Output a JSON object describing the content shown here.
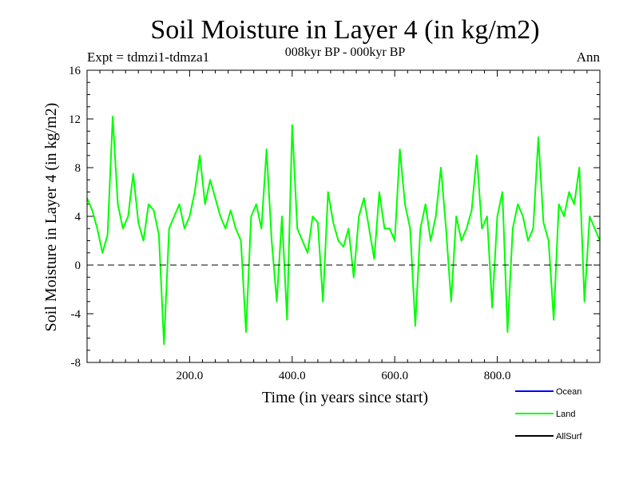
{
  "chart_data": {
    "type": "line",
    "title": "Soil Moisture in Layer 4 (in kg/m2)",
    "subtitle": "008kyr BP - 000kyr BP",
    "experiment_label": "Expt = tdmzi1-tdmza1",
    "period_label": "Ann",
    "xlabel": "Time (in years since start)",
    "ylabel": "Soil Moisture in Layer 4 (in kg/m2)",
    "xlim": [
      0,
      1000
    ],
    "ylim": [
      -8,
      16
    ],
    "x_ticks": [
      200,
      400,
      600,
      800
    ],
    "x_tick_labels": [
      "200.0",
      "400.0",
      "600.0",
      "800.0"
    ],
    "y_ticks": [
      -8,
      -4,
      0,
      4,
      8,
      12,
      16
    ],
    "y_tick_labels": [
      "-8",
      "-4",
      "0",
      "4",
      "8",
      "12",
      "16"
    ],
    "reference_line": 0,
    "legend_position": "bottom-right",
    "series": [
      {
        "name": "Ocean",
        "color": "#0000ff",
        "x": [],
        "values": []
      },
      {
        "name": "Land",
        "color": "#00ff00",
        "x": [
          0,
          10,
          20,
          30,
          40,
          50,
          60,
          70,
          80,
          90,
          100,
          110,
          120,
          130,
          140,
          150,
          160,
          170,
          180,
          190,
          200,
          210,
          220,
          230,
          240,
          250,
          260,
          270,
          280,
          290,
          300,
          310,
          320,
          330,
          340,
          350,
          360,
          370,
          380,
          390,
          400,
          410,
          420,
          430,
          440,
          450,
          460,
          470,
          480,
          490,
          500,
          510,
          520,
          530,
          540,
          550,
          560,
          570,
          580,
          590,
          600,
          610,
          620,
          630,
          640,
          650,
          660,
          670,
          680,
          690,
          700,
          710,
          720,
          730,
          740,
          750,
          760,
          770,
          780,
          790,
          800,
          810,
          820,
          830,
          840,
          850,
          860,
          870,
          880,
          890,
          900,
          910,
          920,
          930,
          940,
          950,
          960,
          970,
          980,
          990,
          1000
        ],
        "values": [
          5.5,
          4.5,
          3.0,
          1.0,
          2.5,
          12.2,
          5.0,
          3.0,
          4.0,
          7.5,
          3.5,
          2.0,
          5.0,
          4.5,
          2.5,
          -6.5,
          3.0,
          4.0,
          5.0,
          3.0,
          4.0,
          6.0,
          9.0,
          5.0,
          7.0,
          5.5,
          4.0,
          3.0,
          4.5,
          3.0,
          2.0,
          -5.5,
          4.0,
          5.0,
          3.0,
          9.5,
          2.0,
          -3.0,
          4.0,
          -4.5,
          11.5,
          3.0,
          2.0,
          1.0,
          4.0,
          3.5,
          -3.0,
          6.0,
          3.5,
          2.0,
          1.5,
          3.0,
          -1.0,
          4.0,
          5.5,
          3.0,
          0.5,
          6.0,
          3.0,
          3.0,
          2.0,
          9.5,
          5.0,
          3.0,
          -5.0,
          3.0,
          5.0,
          2.0,
          4.0,
          8.0,
          3.0,
          -3.0,
          4.0,
          2.0,
          3.0,
          4.5,
          9.0,
          3.0,
          4.0,
          -3.5,
          4.0,
          6.0,
          -5.5,
          3.0,
          5.0,
          4.0,
          2.0,
          3.0,
          10.5,
          3.5,
          2.0,
          -4.5,
          5.0,
          4.0,
          6.0,
          5.0,
          8.0,
          -3.0,
          4.0,
          3.0,
          2.0
        ]
      },
      {
        "name": "AllSurf",
        "color": "#000000",
        "x": [],
        "values": []
      }
    ]
  }
}
